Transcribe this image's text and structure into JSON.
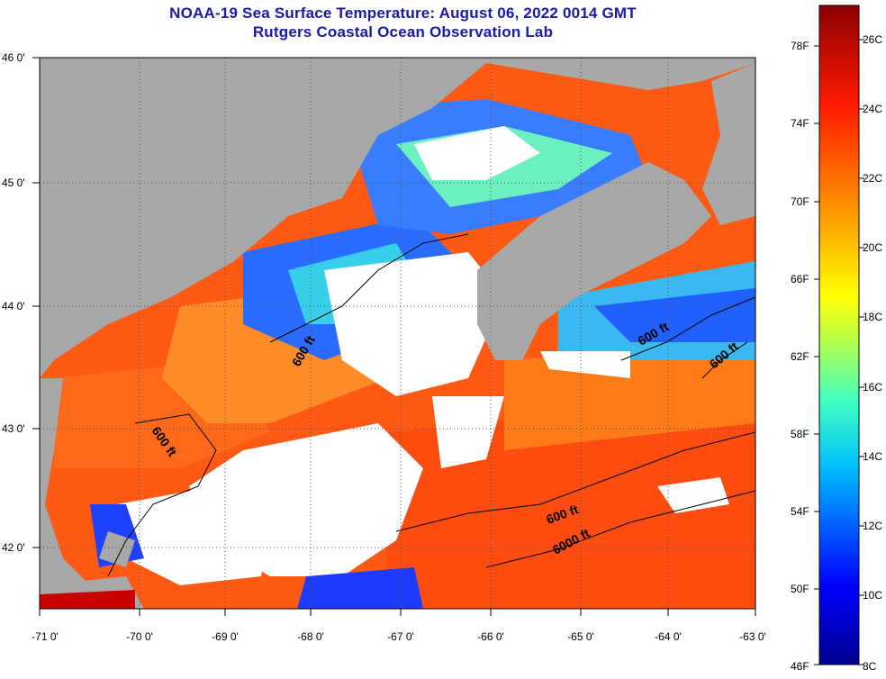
{
  "title": "NOAA-19 Sea Surface Temperature:  August 06, 2022 0014 GMT",
  "subtitle": "Rutgers Coastal Ocean Observation Lab",
  "colors": {
    "title": "#1a1aa8",
    "land": "#a8a8a8",
    "cloud": "#ffffff"
  },
  "map": {
    "lon_ticks": [
      "-71 0'",
      "-70 0'",
      "-69 0'",
      "-68 0'",
      "-67 0'",
      "-66 0'",
      "-65 0'",
      "-64 0'",
      "-63 0'"
    ],
    "lat_ticks": [
      "46 0'",
      "45 0'",
      "44 0'",
      "43 0'",
      "42 0'"
    ],
    "contour_labels": [
      "600 ft",
      "600 ft",
      "600 ft",
      "600 ft",
      "600 ft",
      "6000 ft"
    ]
  },
  "colorbar": {
    "fahrenheit_labels": [
      "78F",
      "74F",
      "70F",
      "66F",
      "62F",
      "58F",
      "54F",
      "50F",
      "46F"
    ],
    "celsius_labels": [
      "26C",
      "24C",
      "22C",
      "20C",
      "18C",
      "16C",
      "14C",
      "12C",
      "10C",
      "8C"
    ]
  }
}
